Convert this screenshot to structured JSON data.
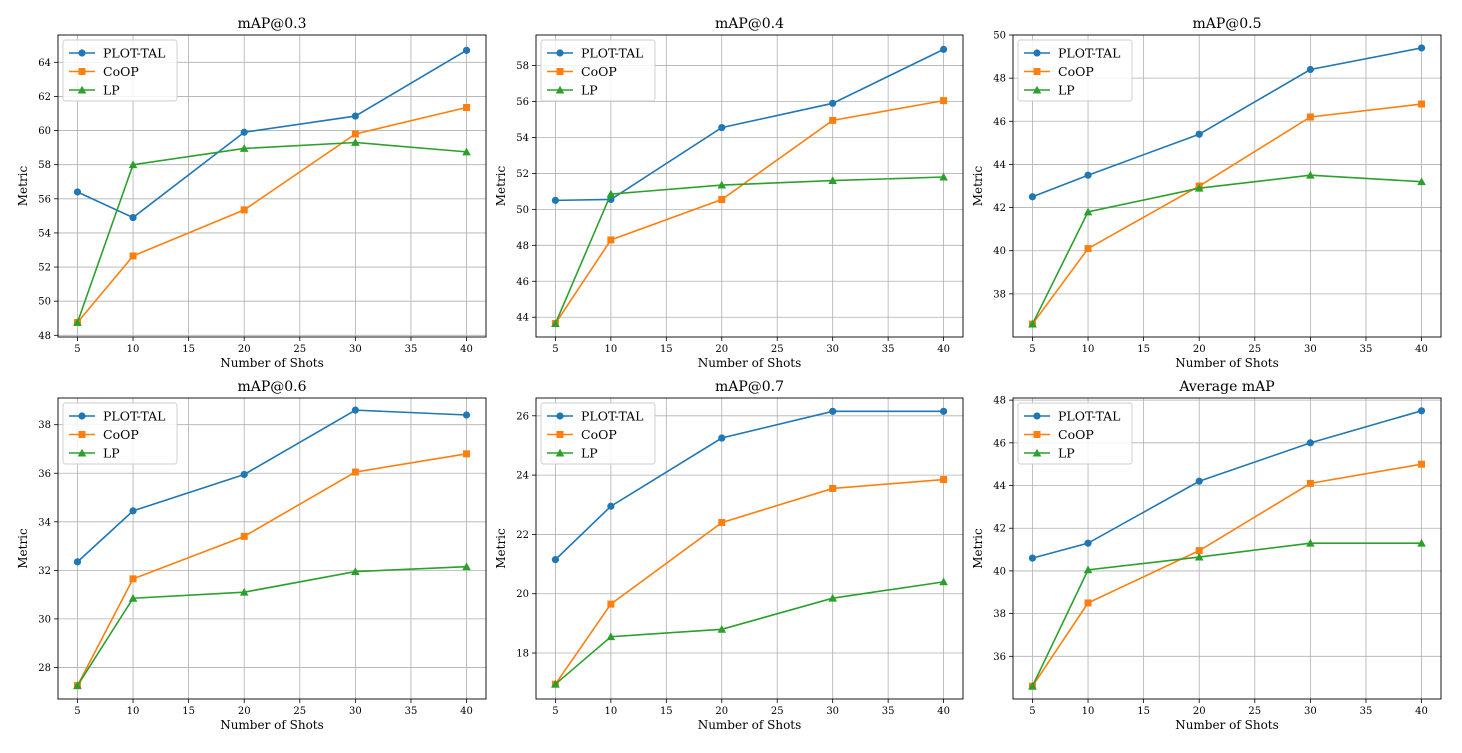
{
  "style": {
    "series_colors": {
      "PLOT-TAL": "#1f77b4",
      "CoOP": "#ff7f0e",
      "LP": "#2ca02c"
    },
    "series_markers": {
      "PLOT-TAL": "circle",
      "CoOP": "square",
      "LP": "triangle"
    },
    "grid_color": "#b0b0b0",
    "axis_color": "#000000",
    "legend_position": "top-left"
  },
  "chart_data": [
    {
      "type": "line",
      "title": "mAP@0.3",
      "xlabel": "Number of Shots",
      "ylabel": "Metric",
      "x": [
        5,
        10,
        20,
        30,
        40
      ],
      "xlim": [
        3.25,
        41.75
      ],
      "xticks": [
        5,
        10,
        15,
        20,
        25,
        30,
        35,
        40
      ],
      "ylim": [
        47.9,
        65.6
      ],
      "yticks": [
        48,
        50,
        52,
        54,
        56,
        58,
        60,
        62,
        64
      ],
      "grid": true,
      "legend": "top-left",
      "series": [
        {
          "name": "PLOT-TAL",
          "values": [
            56.4,
            54.9,
            59.9,
            60.85,
            64.7
          ]
        },
        {
          "name": "CoOP",
          "values": [
            48.75,
            52.65,
            55.35,
            59.8,
            61.35
          ]
        },
        {
          "name": "LP",
          "values": [
            48.75,
            58.0,
            58.95,
            59.3,
            58.75
          ]
        }
      ]
    },
    {
      "type": "line",
      "title": "mAP@0.4",
      "xlabel": "Number of Shots",
      "ylabel": "Metric",
      "x": [
        5,
        10,
        20,
        30,
        40
      ],
      "xlim": [
        3.25,
        41.75
      ],
      "xticks": [
        5,
        10,
        15,
        20,
        25,
        30,
        35,
        40
      ],
      "ylim": [
        42.9,
        59.7
      ],
      "yticks": [
        44,
        46,
        48,
        50,
        52,
        54,
        56,
        58
      ],
      "grid": true,
      "legend": "top-left",
      "series": [
        {
          "name": "PLOT-TAL",
          "values": [
            50.5,
            50.55,
            54.55,
            55.9,
            58.9
          ]
        },
        {
          "name": "CoOP",
          "values": [
            43.65,
            48.3,
            50.55,
            54.95,
            56.05
          ]
        },
        {
          "name": "LP",
          "values": [
            43.65,
            50.85,
            51.35,
            51.6,
            51.8
          ]
        }
      ]
    },
    {
      "type": "line",
      "title": "mAP@0.5",
      "xlabel": "Number of Shots",
      "ylabel": "Metric",
      "x": [
        5,
        10,
        20,
        30,
        40
      ],
      "xlim": [
        3.25,
        41.75
      ],
      "xticks": [
        5,
        10,
        15,
        20,
        25,
        30,
        35,
        40
      ],
      "ylim": [
        36.0,
        50.0
      ],
      "yticks": [
        38,
        40,
        42,
        44,
        46,
        48,
        50
      ],
      "grid": true,
      "legend": "top-left",
      "series": [
        {
          "name": "PLOT-TAL",
          "values": [
            42.5,
            43.5,
            45.4,
            48.4,
            49.4
          ]
        },
        {
          "name": "CoOP",
          "values": [
            36.6,
            40.1,
            43.0,
            46.2,
            46.8
          ]
        },
        {
          "name": "LP",
          "values": [
            36.6,
            41.8,
            42.9,
            43.5,
            43.2
          ]
        }
      ]
    },
    {
      "type": "line",
      "title": "mAP@0.6",
      "xlabel": "Number of Shots",
      "ylabel": "Metric",
      "x": [
        5,
        10,
        20,
        30,
        40
      ],
      "xlim": [
        3.25,
        41.75
      ],
      "xticks": [
        5,
        10,
        15,
        20,
        25,
        30,
        35,
        40
      ],
      "ylim": [
        26.7,
        39.1
      ],
      "yticks": [
        28,
        30,
        32,
        34,
        36,
        38
      ],
      "grid": true,
      "legend": "top-left",
      "series": [
        {
          "name": "PLOT-TAL",
          "values": [
            32.35,
            34.45,
            35.95,
            38.6,
            38.4
          ]
        },
        {
          "name": "CoOP",
          "values": [
            27.25,
            31.65,
            33.4,
            36.05,
            36.8
          ]
        },
        {
          "name": "LP",
          "values": [
            27.25,
            30.85,
            31.1,
            31.95,
            32.15
          ]
        }
      ]
    },
    {
      "type": "line",
      "title": "mAP@0.7",
      "xlabel": "Number of Shots",
      "ylabel": "Metric",
      "x": [
        5,
        10,
        20,
        30,
        40
      ],
      "xlim": [
        3.25,
        41.75
      ],
      "xticks": [
        5,
        10,
        15,
        20,
        25,
        30,
        35,
        40
      ],
      "ylim": [
        16.45,
        26.6
      ],
      "yticks": [
        18,
        20,
        22,
        24,
        26
      ],
      "grid": true,
      "legend": "top-left",
      "series": [
        {
          "name": "PLOT-TAL",
          "values": [
            21.15,
            22.95,
            25.25,
            26.15,
            26.15
          ]
        },
        {
          "name": "CoOP",
          "values": [
            16.95,
            19.65,
            22.4,
            23.55,
            23.85
          ]
        },
        {
          "name": "LP",
          "values": [
            16.95,
            18.55,
            18.8,
            19.85,
            20.4
          ]
        }
      ]
    },
    {
      "type": "line",
      "title": "Average mAP",
      "xlabel": "Number of Shots",
      "ylabel": "Metric",
      "x": [
        5,
        10,
        20,
        30,
        40
      ],
      "xlim": [
        3.25,
        41.75
      ],
      "xticks": [
        5,
        10,
        15,
        20,
        25,
        30,
        35,
        40
      ],
      "ylim": [
        34.0,
        48.1
      ],
      "yticks": [
        36,
        38,
        40,
        42,
        44,
        46,
        48
      ],
      "grid": true,
      "legend": "top-left",
      "series": [
        {
          "name": "PLOT-TAL",
          "values": [
            40.6,
            41.3,
            44.2,
            46.0,
            47.5
          ]
        },
        {
          "name": "CoOP",
          "values": [
            34.6,
            38.5,
            40.95,
            44.1,
            45.0
          ]
        },
        {
          "name": "LP",
          "values": [
            34.6,
            40.05,
            40.65,
            41.3,
            41.3
          ]
        }
      ]
    }
  ]
}
